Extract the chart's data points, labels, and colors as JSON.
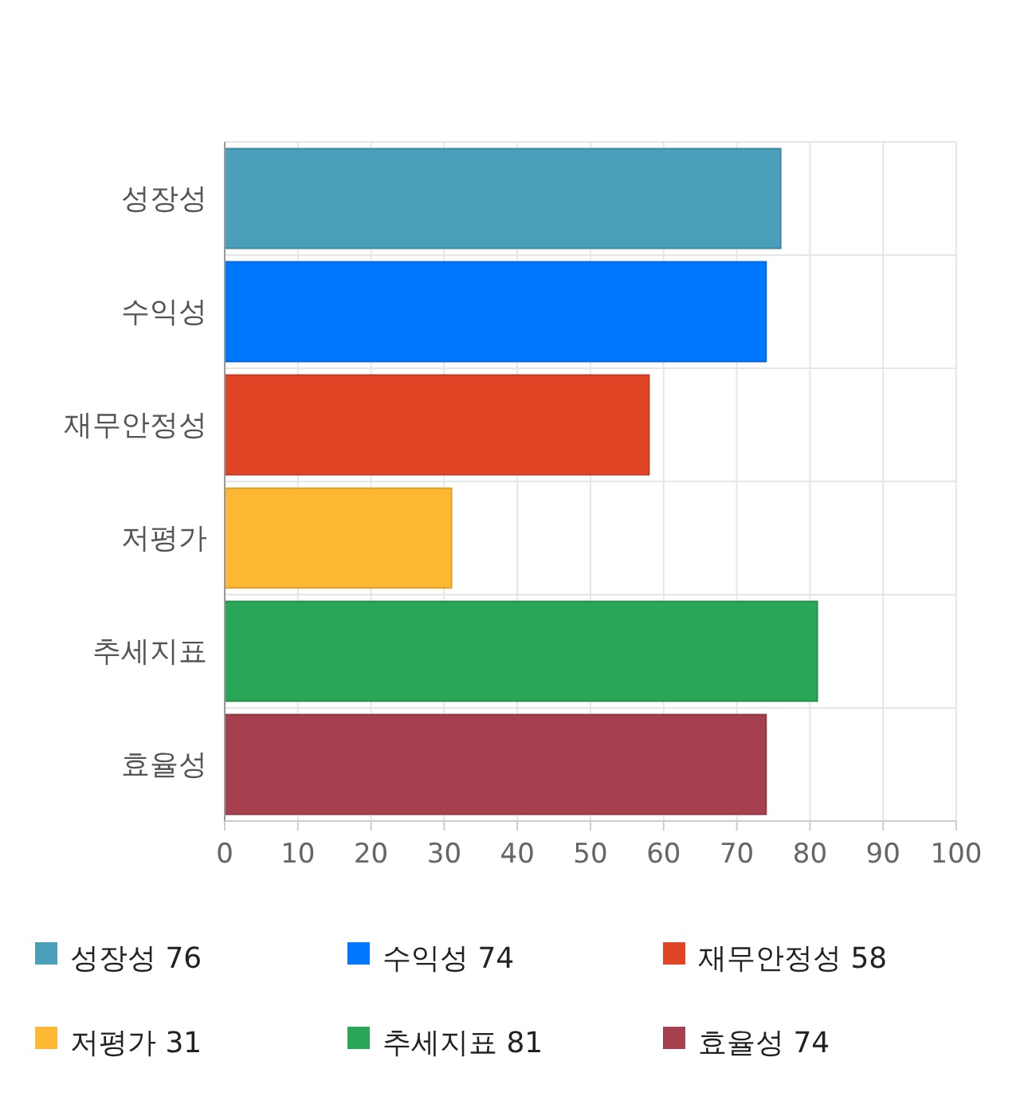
{
  "chart_data": {
    "type": "bar",
    "orientation": "horizontal",
    "stacked": true,
    "categories": [
      "성장성",
      "수익성",
      "재무안정성",
      "저평가",
      "추세지표",
      "효율성"
    ],
    "series": [
      {
        "name": "성장성 76",
        "color": "#4aa0bb",
        "values": [
          76,
          null,
          null,
          null,
          null,
          null
        ]
      },
      {
        "name": "수익성 74",
        "color": "#0077ff",
        "values": [
          null,
          74,
          null,
          null,
          null,
          null
        ]
      },
      {
        "name": "재무안정성 58",
        "color": "#e04526",
        "values": [
          null,
          null,
          58,
          null,
          null,
          null
        ]
      },
      {
        "name": "저평가 31",
        "color": "#ffb833",
        "values": [
          null,
          null,
          null,
          31,
          null,
          null
        ]
      },
      {
        "name": "추세지표 81",
        "color": "#29a756",
        "values": [
          null,
          null,
          null,
          null,
          81,
          null
        ]
      },
      {
        "name": "효율성 74",
        "color": "#a6404f",
        "values": [
          null,
          null,
          null,
          null,
          null,
          74
        ]
      }
    ],
    "xlim": [
      0,
      100
    ],
    "xticks": [
      0,
      10,
      20,
      30,
      40,
      50,
      60,
      70,
      80,
      90,
      100
    ],
    "grid": true,
    "legend": "bottom"
  }
}
